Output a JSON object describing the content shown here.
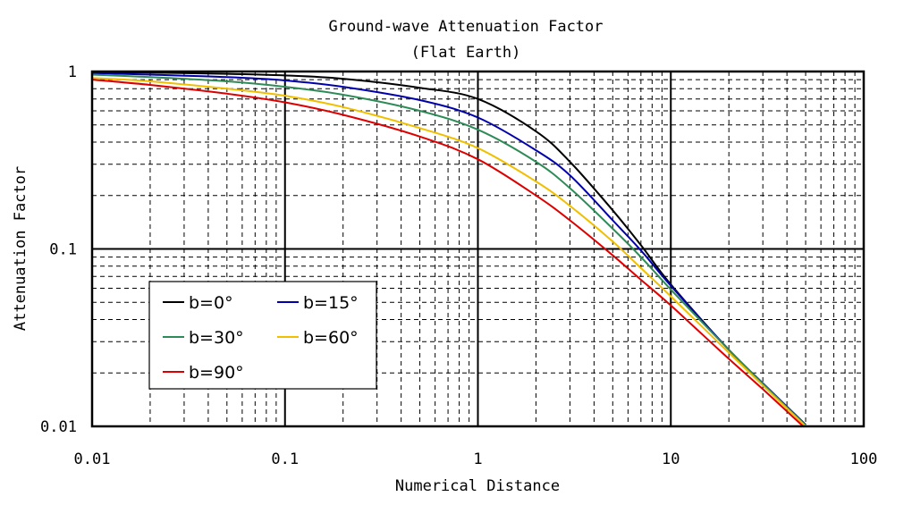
{
  "chart_data": {
    "type": "line",
    "title": "Ground-wave Attenuation Factor",
    "subtitle": "(Flat Earth)",
    "xlabel": "Numerical Distance",
    "ylabel": "Attenuation Factor",
    "xscale": "log",
    "yscale": "log",
    "xlim": [
      0.01,
      100
    ],
    "ylim": [
      0.01,
      1
    ],
    "xticks": [
      0.01,
      0.1,
      1,
      10,
      100
    ],
    "xtick_labels": [
      "0.01",
      "0.1",
      "1",
      "10",
      "100"
    ],
    "yticks": [
      0.01,
      0.1,
      1
    ],
    "ytick_labels": [
      "0.01",
      "0.1",
      "1"
    ],
    "grid": true,
    "legend_position": "lower-left",
    "x": [
      0.01,
      0.02,
      0.05,
      0.1,
      0.2,
      0.5,
      1,
      2,
      3,
      5,
      7,
      10,
      20,
      30,
      50
    ],
    "series": [
      {
        "name": "b=0°",
        "color": "#000000",
        "values": [
          0.99,
          0.985,
          0.97,
          0.95,
          0.91,
          0.81,
          0.7,
          0.46,
          0.31,
          0.165,
          0.105,
          0.063,
          0.027,
          0.0175,
          0.0102
        ]
      },
      {
        "name": "b=15°",
        "color": "#0000aa",
        "values": [
          0.98,
          0.96,
          0.93,
          0.89,
          0.82,
          0.69,
          0.55,
          0.36,
          0.26,
          0.145,
          0.098,
          0.062,
          0.027,
          0.0175,
          0.0102
        ]
      },
      {
        "name": "b=30°",
        "color": "#2e8b57",
        "values": [
          0.96,
          0.93,
          0.88,
          0.82,
          0.74,
          0.6,
          0.47,
          0.31,
          0.22,
          0.13,
          0.09,
          0.059,
          0.027,
          0.0174,
          0.0101
        ]
      },
      {
        "name": "b=60°",
        "color": "#f0c000",
        "values": [
          0.92,
          0.88,
          0.8,
          0.73,
          0.63,
          0.48,
          0.37,
          0.24,
          0.175,
          0.11,
          0.078,
          0.054,
          0.026,
          0.017,
          0.01
        ]
      },
      {
        "name": "b=90°",
        "color": "#dd0000",
        "values": [
          0.9,
          0.84,
          0.75,
          0.67,
          0.57,
          0.43,
          0.32,
          0.2,
          0.145,
          0.092,
          0.067,
          0.048,
          0.024,
          0.0162,
          0.0097
        ]
      }
    ]
  }
}
